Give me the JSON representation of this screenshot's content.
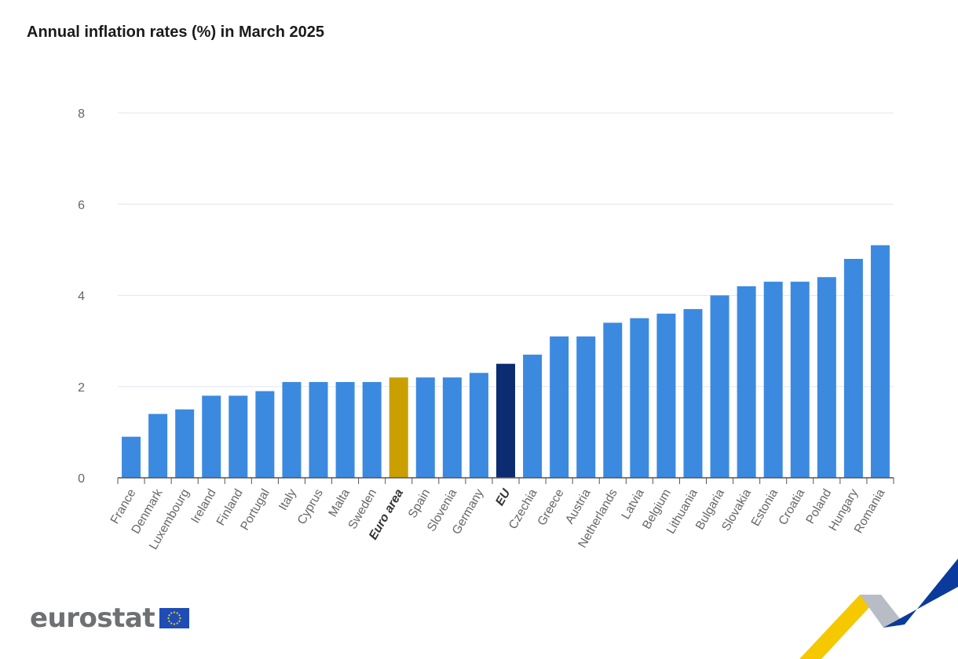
{
  "chart_data": {
    "type": "bar",
    "title": "Annual inflation rates (%) in March 2025",
    "xlabel": "",
    "ylabel": "",
    "ylim": [
      0,
      8
    ],
    "yticks": [
      0,
      2,
      4,
      6,
      8
    ],
    "grid": true,
    "categories": [
      "France",
      "Denmark",
      "Luxembourg",
      "Ireland",
      "Finland",
      "Portugal",
      "Italy",
      "Cyprus",
      "Malta",
      "Sweden",
      "Euro area",
      "Spain",
      "Slovenia",
      "Germany",
      "EU",
      "Czechia",
      "Greece",
      "Austria",
      "Netherlands",
      "Latvia",
      "Belgium",
      "Lithuania",
      "Bulgaria",
      "Slovakia",
      "Estonia",
      "Croatia",
      "Poland",
      "Hungary",
      "Romania"
    ],
    "values": [
      0.9,
      1.4,
      1.5,
      1.8,
      1.8,
      1.9,
      2.1,
      2.1,
      2.1,
      2.1,
      2.2,
      2.2,
      2.2,
      2.3,
      2.5,
      2.7,
      3.1,
      3.1,
      3.4,
      3.5,
      3.6,
      3.7,
      4.0,
      4.2,
      4.3,
      4.3,
      4.4,
      4.8,
      5.1
    ],
    "highlight": {
      "Euro area": "#c9a000",
      "EU": "#0c2c72"
    },
    "bold_categories": [
      "Euro area",
      "EU"
    ]
  },
  "colors": {
    "bar": "#3c8ae0",
    "grid": "#e3e6f0",
    "axis": "#555555",
    "tick_text": "#666666"
  },
  "brand": {
    "name": "eurostat",
    "logo_icon": "eu-flag-icon",
    "decor_icon": "eurostat-swoosh-icon"
  }
}
